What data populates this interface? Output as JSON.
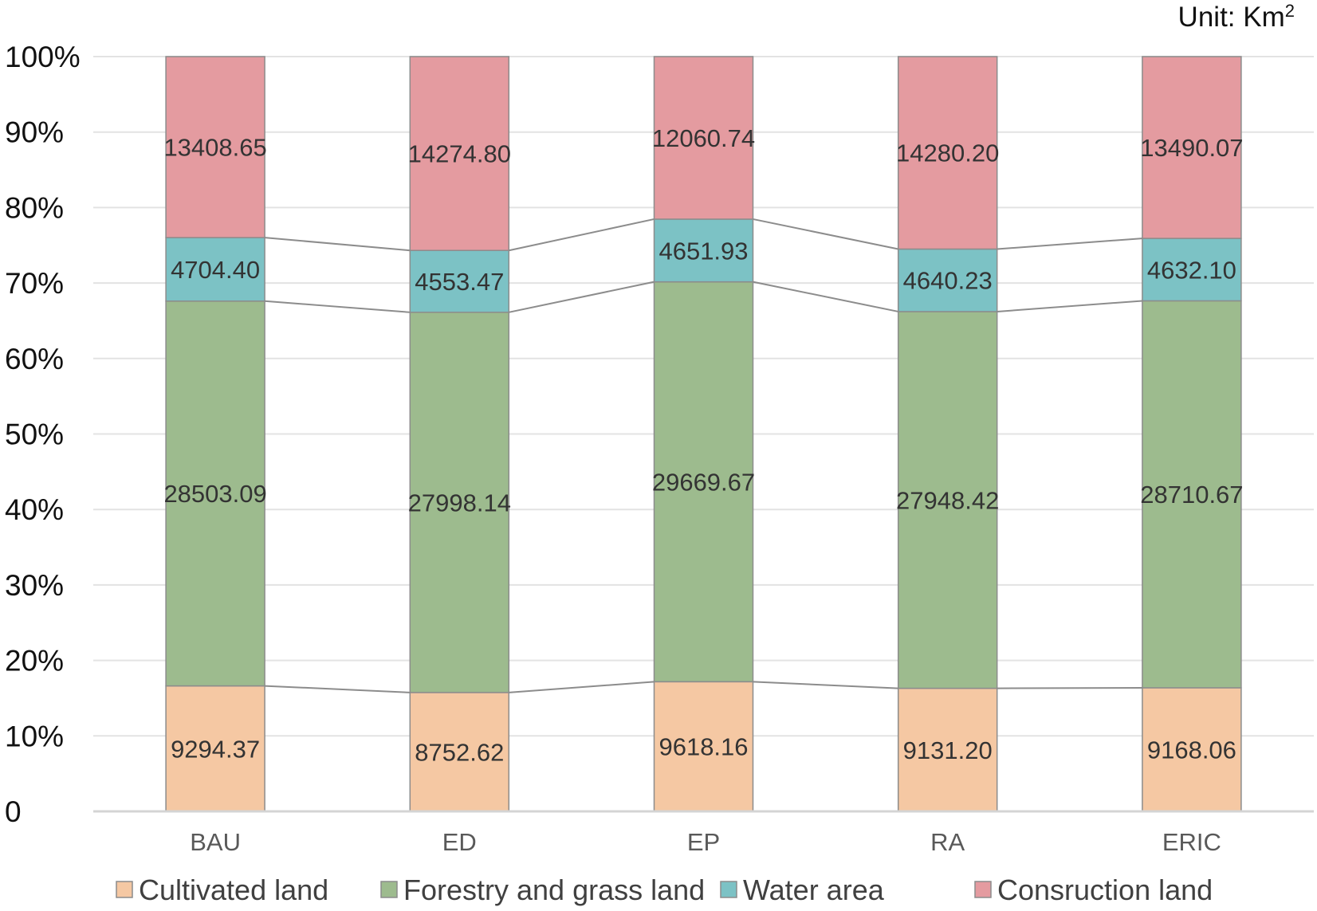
{
  "chart_data": {
    "type": "bar",
    "stacked": "percent",
    "unit_label": "Unit: Km",
    "unit_superscript": "2",
    "categories": [
      "BAU",
      "ED",
      "EP",
      "RA",
      "ERIC"
    ],
    "series": [
      {
        "name": "Cultivated land",
        "color": "#F5C8A3",
        "values": [
          9294.37,
          8752.62,
          9618.16,
          9131.2,
          9168.06
        ],
        "labels": [
          "9294.37",
          "8752.62",
          "9618.16",
          "9131.20",
          "9168.06"
        ]
      },
      {
        "name": "Forestry and grass land",
        "color": "#9DBB8E",
        "values": [
          28503.09,
          27998.14,
          29669.67,
          27948.42,
          28710.67
        ],
        "labels": [
          "28503.09",
          "27998.14",
          "29669.67",
          "27948.42",
          "28710.67"
        ]
      },
      {
        "name": "Water area",
        "color": "#7CC2C5",
        "values": [
          4704.4,
          4553.47,
          4651.93,
          4640.23,
          4632.1
        ],
        "labels": [
          "4704.40",
          "4553.47",
          "4651.93",
          "4640.23",
          "4632.10"
        ]
      },
      {
        "name": "Consruction land",
        "color": "#E49BA0",
        "values": [
          13408.65,
          14274.8,
          12060.74,
          14280.2,
          13490.07
        ],
        "labels": [
          "13408.65",
          "14274.80",
          "12060.74",
          "14280.20",
          "13490.07"
        ]
      }
    ],
    "y_ticks": [
      "0",
      "10%",
      "20%",
      "30%",
      "40%",
      "50%",
      "60%",
      "70%",
      "80%",
      "90%",
      "100%"
    ],
    "ylim": [
      0,
      100
    ],
    "grid": true,
    "series_connector_lines": true,
    "legend_position": "bottom"
  }
}
